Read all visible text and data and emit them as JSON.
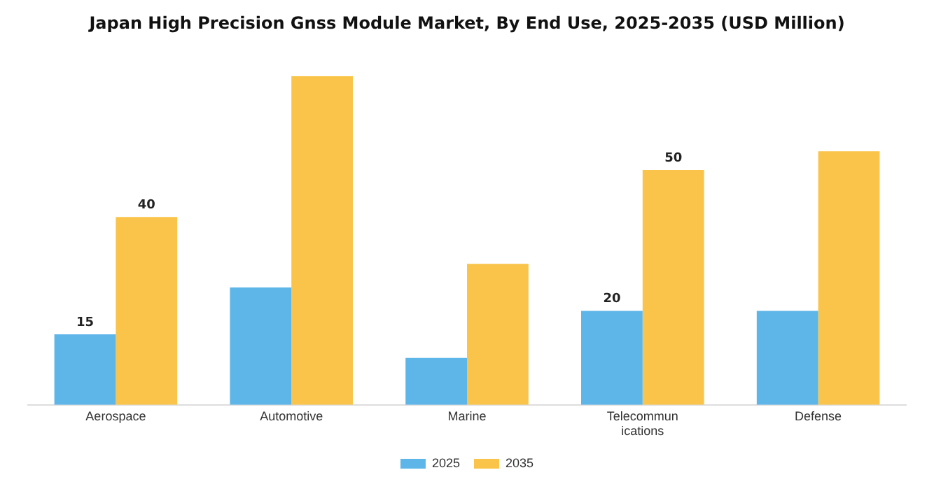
{
  "chart_data": {
    "type": "bar",
    "title": "Japan High Precision Gnss Module Market, By End Use, 2025-2035 (USD Million)",
    "categories": [
      "Aerospace",
      "Automotive",
      "Marine",
      "Telecommunications",
      "Defense"
    ],
    "series": [
      {
        "name": "2025",
        "color": "#5db5e8",
        "values": [
          15,
          25,
          10,
          20,
          20
        ],
        "value_labels": [
          "15",
          null,
          null,
          "20",
          null
        ]
      },
      {
        "name": "2035",
        "color": "#f9c449",
        "values": [
          40,
          70,
          30,
          50,
          54
        ],
        "value_labels": [
          "40",
          null,
          null,
          "50",
          null
        ]
      }
    ],
    "legend": "bottom"
  }
}
